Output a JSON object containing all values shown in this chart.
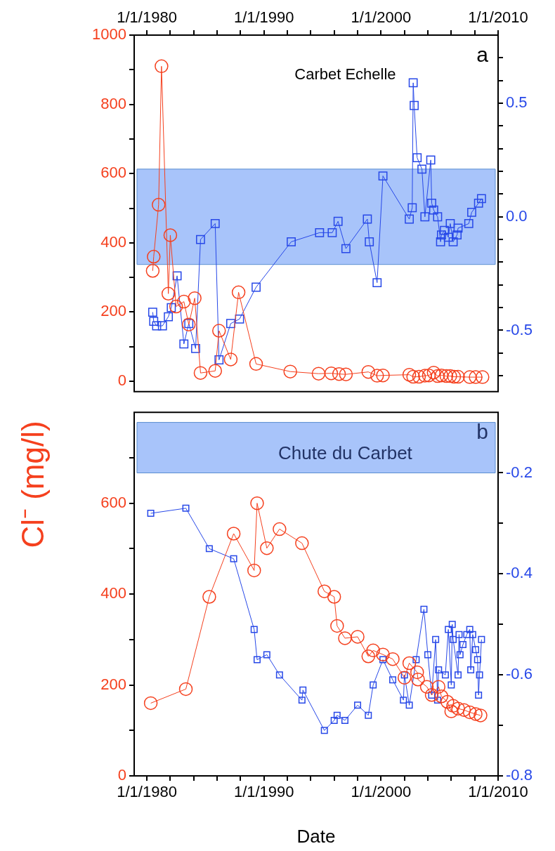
{
  "chart_data": [
    {
      "type": "line",
      "title": "Carbet Echelle",
      "annotations": [
        "a"
      ],
      "xlim": [
        "1978-12-01",
        "2010-01-01"
      ],
      "xticks": [
        {
          "value": "1980-01-01",
          "label": "1/1/1980"
        },
        {
          "value": "1982-01-01",
          "label": null
        },
        {
          "value": "1984-01-01",
          "label": null
        },
        {
          "value": "1986-01-01",
          "label": null
        },
        {
          "value": "1988-01-01",
          "label": null
        },
        {
          "value": "1990-01-01",
          "label": "1/1/1990"
        },
        {
          "value": "1992-01-01",
          "label": null
        },
        {
          "value": "1994-01-01",
          "label": null
        },
        {
          "value": "1996-01-01",
          "label": null
        },
        {
          "value": "1998-01-01",
          "label": null
        },
        {
          "value": "2000-01-01",
          "label": "1/1/2000"
        },
        {
          "value": "2002-01-01",
          "label": null
        },
        {
          "value": "2004-01-01",
          "label": null
        },
        {
          "value": "2006-01-01",
          "label": null
        },
        {
          "value": "2008-01-01",
          "label": null
        },
        {
          "value": "2010-01-01",
          "label": "1/1/2010"
        }
      ],
      "ylim": [
        -30,
        1000
      ],
      "yticks": [
        0,
        {
          "value": 100,
          "label": null
        },
        200,
        {
          "value": 300,
          "label": null
        },
        400,
        {
          "value": 500,
          "label": null
        },
        600,
        {
          "value": 700,
          "label": null
        },
        800,
        {
          "value": 900,
          "label": null
        },
        1000
      ],
      "y2lim": [
        -0.77,
        0.8
      ],
      "y2ticks": [
        {
          "value": -0.7,
          "label": null
        },
        {
          "value": -0.6,
          "label": null
        },
        -0.5,
        {
          "value": -0.4,
          "label": null
        },
        {
          "value": -0.3,
          "label": null
        },
        {
          "value": -0.2,
          "label": null
        },
        {
          "value": -0.1,
          "label": null
        },
        {
          "value": 0,
          "label": "0.0"
        },
        {
          "value": 0.1,
          "label": null
        },
        {
          "value": 0.2,
          "label": null
        },
        {
          "value": 0.3,
          "label": null
        },
        {
          "value": 0.4,
          "label": null
        },
        0.5,
        {
          "value": 0.6,
          "label": null
        },
        {
          "value": 0.7,
          "label": null
        }
      ],
      "bands": [
        {
          "axis": "y2",
          "from": -0.21,
          "to": 0.21,
          "color": "#a8c4fa"
        }
      ],
      "series": [
        {
          "color": "#f5401e",
          "marker": "circle",
          "x": [
            "1980-07",
            "1980-08",
            "1981-01",
            "1981-04",
            "1981-11",
            "1982-01",
            "1982-07",
            "1983-03",
            "1983-08",
            "1984-02",
            "1984-08",
            "1985-11",
            "1986-03",
            "1987-03",
            "1987-11",
            "1989-05",
            "1992-04",
            "1994-09",
            "1995-10",
            "1996-06",
            "1997-01",
            "1998-12",
            "1999-09",
            "2000-03",
            "2002-06",
            "2002-10",
            "2003-04",
            "2003-10",
            "2004-02",
            "2004-07",
            "2004-11",
            "2005-03",
            "2005-08",
            "2005-12",
            "2006-04",
            "2006-08",
            "2007-08",
            "2008-02",
            "2008-09"
          ],
          "values": [
            319,
            360,
            510,
            910,
            253,
            422,
            216,
            230,
            164,
            240,
            24,
            30,
            146,
            63,
            257,
            50,
            28,
            22,
            23,
            21,
            20,
            27,
            16,
            17,
            19,
            13,
            13,
            16,
            17,
            25,
            15,
            17,
            15,
            15,
            13,
            13,
            12,
            12,
            12
          ]
        },
        {
          "color": "#2748e8",
          "marker": "square",
          "axis": "y2",
          "x": [
            "1980-07",
            "1980-08",
            "1980-11",
            "1981-05",
            "1981-11",
            "1982-02",
            "1982-08",
            "1983-03",
            "1983-08",
            "1984-03",
            "1984-08",
            "1985-11",
            "1986-03",
            "1987-03",
            "1987-12",
            "1989-05",
            "1992-05",
            "1994-10",
            "1995-11",
            "1996-05",
            "1997-01",
            "1998-11",
            "1999-01",
            "1999-09",
            "2000-03",
            "2002-06",
            "2002-09",
            "2002-10",
            "2002-11",
            "2003-02",
            "2003-07",
            "2003-10",
            "2004-04",
            "2004-05",
            "2004-07",
            "2004-11",
            "2005-02",
            "2005-03",
            "2005-06",
            "2005-10",
            "2005-12",
            "2006-03",
            "2006-07",
            "2006-08",
            "2007-07",
            "2007-10",
            "2008-05",
            "2008-08"
          ],
          "values": [
            -0.42,
            -0.46,
            -0.48,
            -0.48,
            -0.44,
            -0.4,
            -0.26,
            -0.56,
            -0.47,
            -0.58,
            -0.1,
            -0.03,
            -0.63,
            -0.47,
            -0.45,
            -0.31,
            -0.11,
            -0.07,
            -0.07,
            -0.02,
            -0.14,
            -0.01,
            -0.11,
            -0.29,
            0.18,
            -0.01,
            0.04,
            0.59,
            0.49,
            0.26,
            0.21,
            0,
            0.25,
            0.06,
            0.03,
            0,
            -0.11,
            -0.08,
            -0.06,
            -0.09,
            -0.03,
            -0.11,
            -0.08,
            -0.05,
            -0.03,
            0.02,
            0.06,
            0.08
          ]
        }
      ]
    },
    {
      "type": "line",
      "title": "Chute du Carbet",
      "annotations": [
        "b"
      ],
      "xlabel": "Date",
      "ylabel": "Cl⁻ (mg/l)",
      "xlim": [
        "1978-12-01",
        "2010-01-01"
      ],
      "xticks": [
        {
          "value": "1980-01-01",
          "label": "1/1/1980"
        },
        {
          "value": "1982-01-01",
          "label": null
        },
        {
          "value": "1984-01-01",
          "label": null
        },
        {
          "value": "1986-01-01",
          "label": null
        },
        {
          "value": "1988-01-01",
          "label": null
        },
        {
          "value": "1990-01-01",
          "label": "1/1/1990"
        },
        {
          "value": "1992-01-01",
          "label": null
        },
        {
          "value": "1994-01-01",
          "label": null
        },
        {
          "value": "1996-01-01",
          "label": null
        },
        {
          "value": "1998-01-01",
          "label": null
        },
        {
          "value": "2000-01-01",
          "label": "1/1/2000"
        },
        {
          "value": "2002-01-01",
          "label": null
        },
        {
          "value": "2004-01-01",
          "label": null
        },
        {
          "value": "2006-01-01",
          "label": null
        },
        {
          "value": "2008-01-01",
          "label": null
        },
        {
          "value": "2010-01-01",
          "label": "1/1/2010"
        }
      ],
      "ylim": [
        0,
        800
      ],
      "yticks": [
        0,
        {
          "value": 100,
          "label": null
        },
        200,
        {
          "value": 300,
          "label": null
        },
        400,
        {
          "value": 500,
          "label": null
        },
        600,
        {
          "value": 700,
          "label": null
        }
      ],
      "y2lim": [
        -0.8,
        -0.08
      ],
      "y2ticks": [
        -0.8,
        {
          "value": -0.7,
          "label": null
        },
        -0.6,
        {
          "value": -0.5,
          "label": null
        },
        -0.4,
        {
          "value": -0.3,
          "label": null
        },
        -0.2
      ],
      "bands": [
        {
          "axis": "y2",
          "from": -0.2,
          "to": -0.1,
          "color": "#a8c4fa"
        }
      ],
      "series": [
        {
          "color": "#f5401e",
          "marker": "circle",
          "x": [
            "1980-05",
            "1983-05",
            "1985-05",
            "1987-06",
            "1989-03",
            "1989-06",
            "1990-04",
            "1991-05",
            "1993-04",
            "1995-03",
            "1996-01",
            "1996-04",
            "1996-12",
            "1998-01",
            "1998-12",
            "1999-05",
            "2000-03",
            "2001-01",
            "2002-01",
            "2002-06",
            "2003-02",
            "2003-03",
            "2003-12",
            "2004-05",
            "2004-12",
            "2005-03",
            "2005-09",
            "2006-01",
            "2006-03",
            "2006-08",
            "2007-02",
            "2007-08",
            "2008-02",
            "2008-07"
          ],
          "values": [
            160,
            191,
            394,
            533,
            452,
            600,
            501,
            543,
            512,
            406,
            394,
            330,
            303,
            306,
            263,
            276,
            267,
            257,
            216,
            248,
            228,
            212,
            196,
            178,
            196,
            175,
            163,
            142,
            154,
            148,
            145,
            140,
            136,
            133
          ]
        },
        {
          "color": "#2748e8",
          "marker": "square",
          "axis": "y2",
          "x": [
            "1980-05",
            "1983-05",
            "1985-05",
            "1987-06",
            "1989-03",
            "1989-06",
            "1990-04",
            "1991-05",
            "1993-04",
            "1993-05",
            "1995-03",
            "1996-01",
            "1996-04",
            "1996-12",
            "1998-01",
            "1998-12",
            "1999-05",
            "2000-03",
            "2001-01",
            "2001-12",
            "2002-01",
            "2002-06",
            "2003-01",
            "2003-09",
            "2004-01",
            "2004-05",
            "2004-09",
            "2004-11",
            "2004-12",
            "2005-07",
            "2005-10",
            "2006-01",
            "2006-02",
            "2006-03",
            "2006-08",
            "2006-09",
            "2006-10",
            "2007-01",
            "2007-05",
            "2007-08",
            "2007-09",
            "2007-11",
            "2008-02",
            "2008-04",
            "2008-05",
            "2008-06",
            "2008-08"
          ],
          "values": [
            -0.28,
            -0.27,
            -0.35,
            -0.37,
            -0.51,
            -0.57,
            -0.56,
            -0.6,
            -0.65,
            -0.63,
            -0.71,
            -0.69,
            -0.68,
            -0.69,
            -0.66,
            -0.68,
            -0.62,
            -0.57,
            -0.61,
            -0.65,
            -0.6,
            -0.66,
            -0.57,
            -0.47,
            -0.56,
            -0.64,
            -0.53,
            -0.65,
            -0.59,
            -0.6,
            -0.51,
            -0.62,
            -0.5,
            -0.53,
            -0.6,
            -0.52,
            -0.56,
            -0.54,
            -0.52,
            -0.51,
            -0.59,
            -0.52,
            -0.55,
            -0.57,
            -0.64,
            -0.6,
            -0.53
          ]
        }
      ]
    }
  ]
}
